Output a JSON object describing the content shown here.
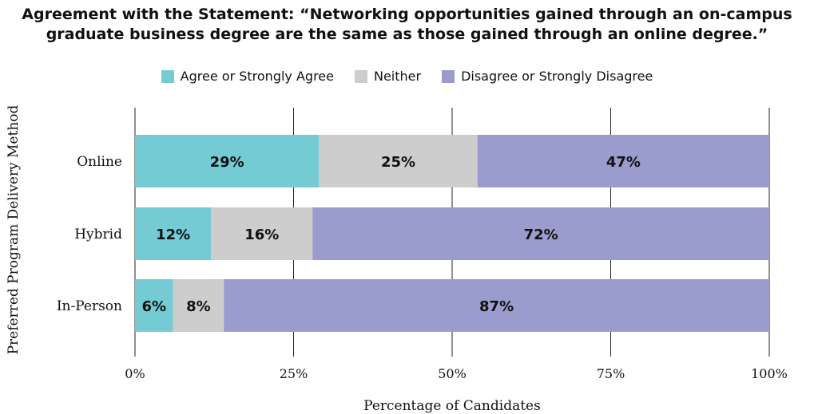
{
  "chart_data": {
    "type": "bar",
    "orientation": "horizontal",
    "stacked": true,
    "title": "Agreement with the Statement: “Networking opportunities gained through an on-campus graduate business degree are the same as those gained through an online degree.”",
    "title_lines": [
      "Agreement with the Statement: “Networking opportunities gained through an on-campus",
      "graduate business degree are the same as those gained through an online degree.”"
    ],
    "xlabel": "Percentage of Candidates",
    "ylabel": "Preferred Program Delivery Method",
    "xlim": [
      0,
      100
    ],
    "x_ticks": [
      0,
      25,
      50,
      75,
      100
    ],
    "x_tick_labels": [
      "0%",
      "25%",
      "50%",
      "75%",
      "100%"
    ],
    "grid": "vertical",
    "legend_position": "top-center",
    "categories": [
      "Online",
      "Hybrid",
      "In-Person"
    ],
    "series": [
      {
        "name": "Agree or Strongly Agree",
        "color": "#74CBD3",
        "values": [
          29,
          12,
          6
        ],
        "labels": [
          "29%",
          "12%",
          "6%"
        ]
      },
      {
        "name": "Neither",
        "color": "#CDCDCD",
        "values": [
          25,
          16,
          8
        ],
        "labels": [
          "25%",
          "16%",
          "8%"
        ]
      },
      {
        "name": "Disagree or Strongly Disagree",
        "color": "#9A9CCD",
        "values": [
          47,
          72,
          87
        ],
        "labels": [
          "47%",
          "72%",
          "87%"
        ]
      }
    ]
  }
}
